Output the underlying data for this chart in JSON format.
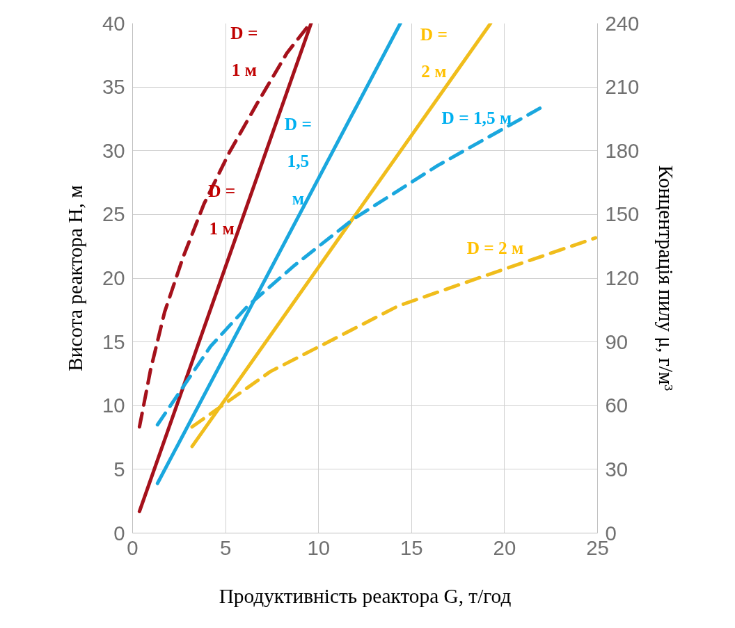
{
  "chart_data": {
    "type": "line",
    "xlabel": "Продуктивність реактора G, т/год",
    "ylabel": "Висота реактора Н, м",
    "y2label": "Концентрація пилу μ, г/м³",
    "xlim": [
      0,
      25
    ],
    "xticks": [
      0,
      5,
      10,
      15,
      20,
      25
    ],
    "ylim": [
      0,
      40
    ],
    "yticks": [
      0,
      5,
      10,
      15,
      20,
      25,
      30,
      35,
      40
    ],
    "y2lim": [
      0,
      240
    ],
    "y2ticks": [
      0,
      30,
      60,
      90,
      120,
      150,
      180,
      210,
      240
    ],
    "grid": true,
    "series": [
      {
        "color": "#a5111b",
        "line_style": "solid",
        "x": [
          0.37,
          9.6
        ],
        "values": [
          1.7,
          40
        ]
      },
      {
        "color": "#1aa7de",
        "line_style": "solid",
        "x": [
          1.34,
          14.4
        ],
        "values": [
          3.9,
          40
        ]
      },
      {
        "color": "#f0bd1c",
        "line_style": "solid",
        "x": [
          3.2,
          19.25
        ],
        "values": [
          6.8,
          40
        ]
      },
      {
        "color": "#a5111b",
        "line_style": "dashed",
        "axis": "y2",
        "x": [
          0.37,
          0.97,
          1.72,
          2.72,
          3.84,
          5.19,
          6.68,
          8.3,
          9.55
        ],
        "values": [
          50,
          77,
          104,
          130,
          155,
          179,
          202,
          226,
          240
        ]
      },
      {
        "color": "#1aa7de",
        "line_style": "dashed",
        "axis": "y2",
        "x": [
          1.34,
          4.2,
          6.2,
          8.7,
          11.9,
          16.4,
          21.9
        ],
        "values": [
          51,
          88,
          107,
          126,
          148,
          173,
          200
        ]
      },
      {
        "color": "#f0bd1c",
        "line_style": "dashed",
        "axis": "y2",
        "x": [
          3.2,
          7.4,
          10.3,
          14.3,
          18.9,
          24.9
        ],
        "values": [
          50,
          76,
          89,
          107,
          121,
          139
        ]
      }
    ],
    "annotations": [
      "D =\n1 м",
      "D =\n1 м",
      "D =\n1,5\nм",
      "D =\n2 м",
      "D = 1,5 м",
      "D = 2 м"
    ]
  }
}
